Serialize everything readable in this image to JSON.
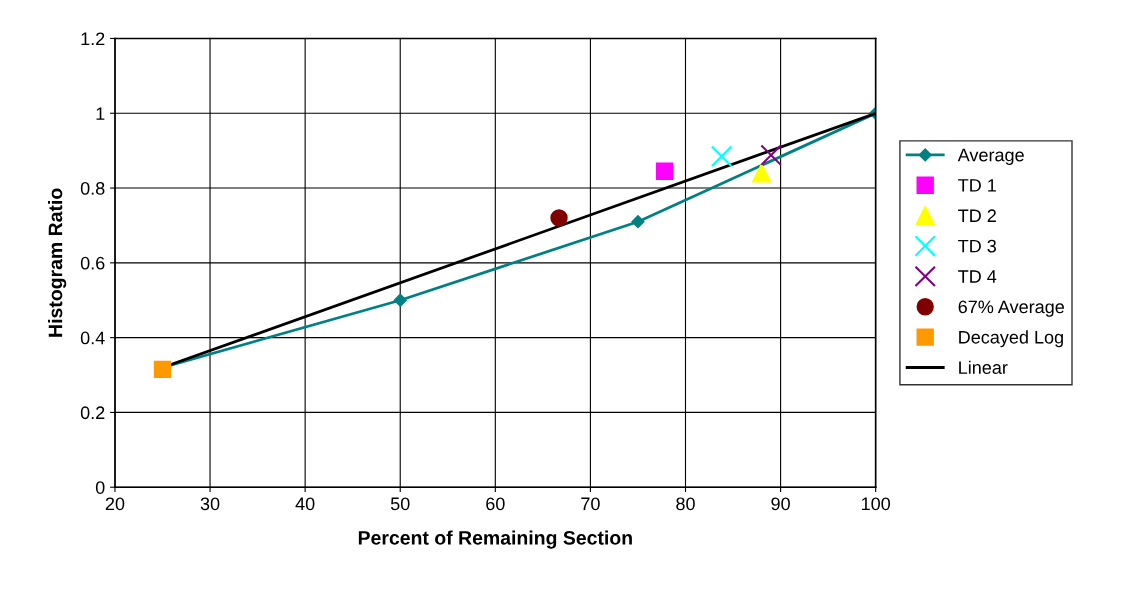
{
  "chart_data": {
    "type": "line",
    "xlabel": "Percent of Remaining Section",
    "ylabel": "Histogram Ratio",
    "xlim": [
      20,
      100
    ],
    "xticks": [
      20,
      30,
      40,
      50,
      60,
      70,
      80,
      90,
      100
    ],
    "ylim": [
      0,
      1.2
    ],
    "yticks": [
      0,
      0.2,
      0.4,
      0.6,
      0.8,
      1,
      1.2
    ],
    "grid": true,
    "legend": "right",
    "series": [
      {
        "name": "Average",
        "color": "#008080",
        "marker": "diamond",
        "x": [
          25,
          50,
          75,
          100
        ],
        "values": [
          0.32,
          0.5,
          0.71,
          1.0
        ]
      },
      {
        "name": "TD 1",
        "type": "scatter",
        "color": "#ff00ff",
        "marker": "square",
        "x": [
          77.8
        ],
        "values": [
          0.845
        ]
      },
      {
        "name": "TD 2",
        "type": "scatter",
        "color": "#ffff00",
        "marker": "triangle",
        "x": [
          88
        ],
        "values": [
          0.84
        ]
      },
      {
        "name": "TD 3",
        "type": "scatter",
        "color": "#00ffff",
        "marker": "cross",
        "x": [
          83.8
        ],
        "values": [
          0.885
        ]
      },
      {
        "name": "TD 4",
        "type": "scatter",
        "color": "#800080",
        "marker": "cross",
        "x": [
          89
        ],
        "values": [
          0.888
        ]
      },
      {
        "name": "67% Average",
        "type": "scatter",
        "color": "#800000",
        "marker": "circle",
        "x": [
          66.7
        ],
        "values": [
          0.72
        ]
      },
      {
        "name": "Decayed Log",
        "type": "scatter",
        "color": "#ff9900",
        "marker": "square",
        "x": [
          25
        ],
        "values": [
          0.315
        ]
      },
      {
        "name": "Linear",
        "color": "#000000",
        "marker": "none",
        "x": [
          25,
          100
        ],
        "values": [
          0.32,
          1.0
        ]
      }
    ]
  }
}
